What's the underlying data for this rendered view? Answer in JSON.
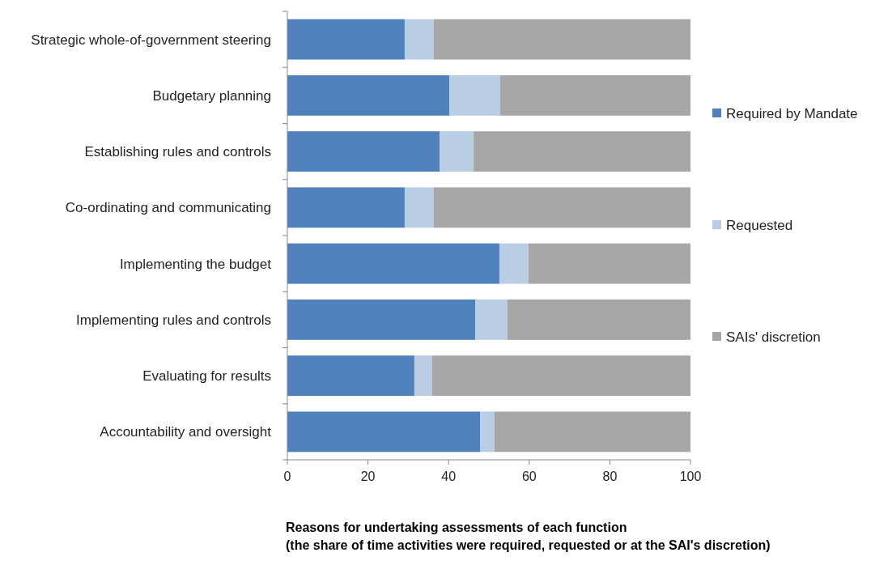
{
  "chart_data": {
    "type": "bar",
    "orientation": "horizontal",
    "stacked": true,
    "categories": [
      "Strategic whole-of-government steering",
      "Budgetary planning",
      "Establishing rules and controls",
      "Co-ordinating and communicating",
      "Implementing the budget",
      "Implementing rules and controls",
      "Evaluating for results",
      "Accountability and oversight"
    ],
    "series": [
      {
        "name": "Required by Mandate",
        "color": "#4f81bd",
        "values": [
          29.1,
          40.2,
          37.8,
          29.1,
          52.6,
          46.6,
          31.5,
          47.8
        ]
      },
      {
        "name": "Requested",
        "color": "#b9cde5",
        "values": [
          7.2,
          12.6,
          8.4,
          7.2,
          7.2,
          8.0,
          4.4,
          3.6
        ]
      },
      {
        "name": "SAIs' discretion",
        "color": "#a6a6a6",
        "values": [
          63.7,
          47.2,
          53.8,
          63.7,
          40.2,
          45.4,
          64.1,
          48.6
        ]
      }
    ],
    "xlim": [
      0,
      100
    ],
    "xticks": [
      0,
      20,
      40,
      60,
      80,
      100
    ],
    "xlabel": "Reasons for undertaking assessments of each function\n(the share of time activities were required, requested or at the  SAI's discretion)",
    "legend": "right",
    "grid": false
  }
}
